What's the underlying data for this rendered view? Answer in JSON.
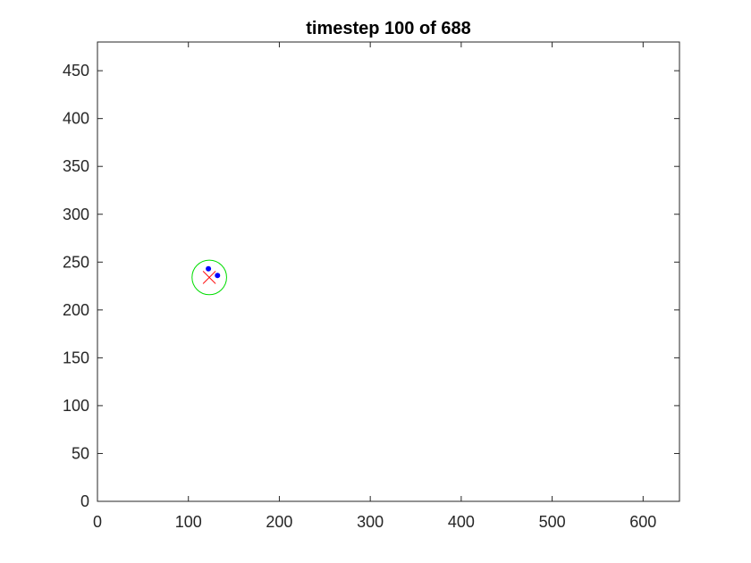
{
  "chart_data": {
    "type": "scatter",
    "title": "timestep 100 of 688",
    "xlabel": "",
    "ylabel": "",
    "xlim": [
      0,
      640
    ],
    "ylim": [
      0,
      480
    ],
    "x_ticks": [
      0,
      100,
      200,
      300,
      400,
      500,
      600
    ],
    "y_ticks": [
      0,
      50,
      100,
      150,
      200,
      250,
      300,
      350,
      400,
      450
    ],
    "grid": false,
    "box": true,
    "series": [
      {
        "marker": "dot",
        "color": "#0000ff",
        "points": [
          {
            "x": 122,
            "y": 243
          },
          {
            "x": 132,
            "y": 236
          }
        ]
      },
      {
        "marker": "x",
        "color": "#ff0000",
        "points": [
          {
            "x": 123,
            "y": 234
          }
        ]
      },
      {
        "marker": "circle",
        "color": "#00dd00",
        "points": [
          {
            "x": 123,
            "y": 234
          }
        ],
        "radius": 19
      }
    ],
    "colors": {
      "axes": "#262626",
      "estimate_circle": "#00dd00",
      "estimate_cross": "#ff0000",
      "particles": "#0000ff"
    }
  }
}
